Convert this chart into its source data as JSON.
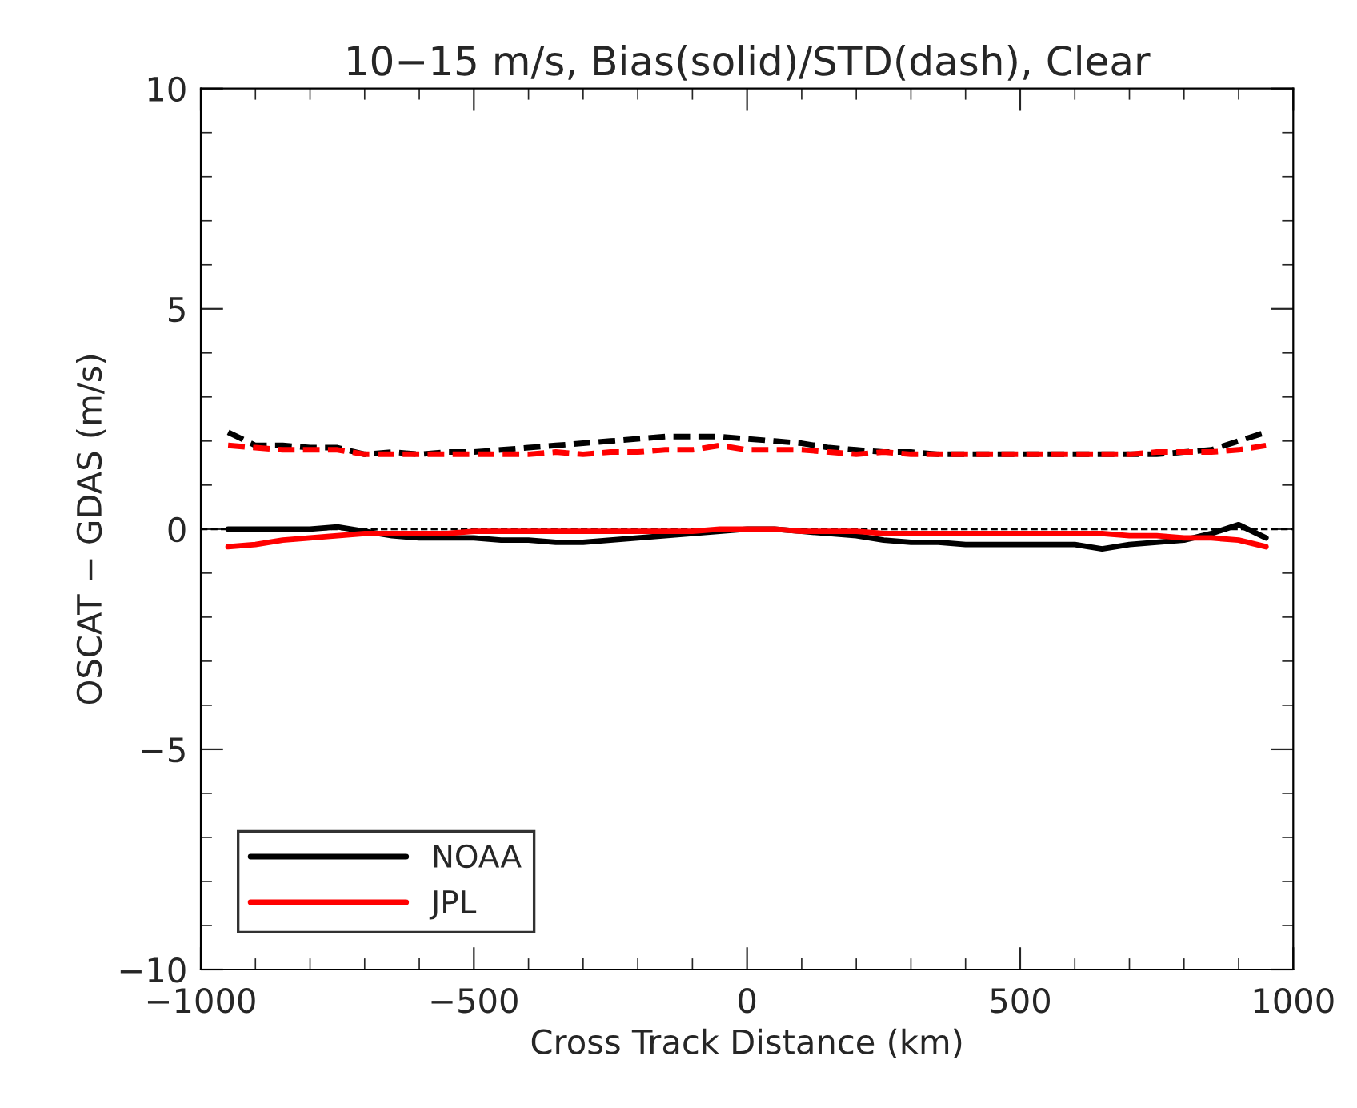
{
  "chart_data": {
    "type": "line",
    "title": "10−15 m/s, Bias(solid)/STD(dash), Clear",
    "xlabel": "Cross Track Distance (km)",
    "ylabel": "OSCAT − GDAS (m/s)",
    "x": [
      -950,
      -900,
      -850,
      -800,
      -750,
      -700,
      -650,
      -600,
      -550,
      -500,
      -450,
      -400,
      -350,
      -300,
      -250,
      -200,
      -150,
      -100,
      -50,
      0,
      50,
      100,
      150,
      200,
      250,
      300,
      350,
      400,
      450,
      500,
      550,
      600,
      650,
      700,
      750,
      800,
      850,
      900,
      950
    ],
    "series": [
      {
        "name": "NOAA",
        "color": "#000000",
        "line_style": "solid",
        "values": [
          0.0,
          0.0,
          0.0,
          0.0,
          0.05,
          -0.05,
          -0.15,
          -0.2,
          -0.2,
          -0.2,
          -0.25,
          -0.25,
          -0.3,
          -0.3,
          -0.25,
          -0.2,
          -0.15,
          -0.1,
          -0.05,
          0.0,
          0.0,
          -0.05,
          -0.1,
          -0.15,
          -0.25,
          -0.3,
          -0.3,
          -0.35,
          -0.35,
          -0.35,
          -0.35,
          -0.35,
          -0.45,
          -0.35,
          -0.3,
          -0.25,
          -0.1,
          0.1,
          -0.2
        ]
      },
      {
        "name": "JPL",
        "color": "#ff0000",
        "line_style": "solid",
        "values": [
          -0.4,
          -0.35,
          -0.25,
          -0.2,
          -0.15,
          -0.1,
          -0.1,
          -0.1,
          -0.1,
          -0.05,
          -0.05,
          -0.05,
          -0.05,
          -0.05,
          -0.05,
          -0.05,
          -0.05,
          -0.05,
          0.0,
          0.0,
          0.0,
          -0.05,
          -0.05,
          -0.05,
          -0.1,
          -0.1,
          -0.1,
          -0.1,
          -0.1,
          -0.1,
          -0.1,
          -0.1,
          -0.1,
          -0.15,
          -0.15,
          -0.2,
          -0.2,
          -0.25,
          -0.4
        ]
      },
      {
        "color": "#000000",
        "line_style": "dashed",
        "values": [
          2.2,
          1.9,
          1.9,
          1.85,
          1.85,
          1.7,
          1.75,
          1.7,
          1.75,
          1.75,
          1.8,
          1.85,
          1.9,
          1.95,
          2.0,
          2.05,
          2.1,
          2.1,
          2.1,
          2.05,
          2.0,
          1.95,
          1.85,
          1.8,
          1.75,
          1.75,
          1.7,
          1.7,
          1.7,
          1.7,
          1.7,
          1.7,
          1.7,
          1.7,
          1.7,
          1.75,
          1.8,
          2.0,
          2.2
        ]
      },
      {
        "color": "#ff0000",
        "line_style": "dashed",
        "values": [
          1.9,
          1.85,
          1.8,
          1.8,
          1.8,
          1.7,
          1.7,
          1.7,
          1.7,
          1.7,
          1.7,
          1.7,
          1.75,
          1.7,
          1.75,
          1.75,
          1.8,
          1.8,
          1.9,
          1.8,
          1.8,
          1.8,
          1.75,
          1.7,
          1.75,
          1.7,
          1.7,
          1.7,
          1.7,
          1.7,
          1.7,
          1.7,
          1.7,
          1.7,
          1.75,
          1.75,
          1.75,
          1.8,
          1.9
        ]
      }
    ],
    "ref_lines": [
      {
        "axis": "y",
        "value": 0,
        "color": "#000000",
        "line_style": "dashed"
      }
    ],
    "xlim": [
      -1000,
      1000
    ],
    "xticks": [
      {
        "value": -1000,
        "label": "−1000"
      },
      {
        "value": -500,
        "label": "−500"
      },
      0,
      500,
      1000
    ],
    "ylim": [
      -10,
      10
    ],
    "yticks": [
      {
        "value": -10,
        "label": "−10"
      },
      {
        "value": -5,
        "label": "−5"
      },
      0,
      5,
      10
    ],
    "grid": false,
    "legend": "bottom left"
  }
}
